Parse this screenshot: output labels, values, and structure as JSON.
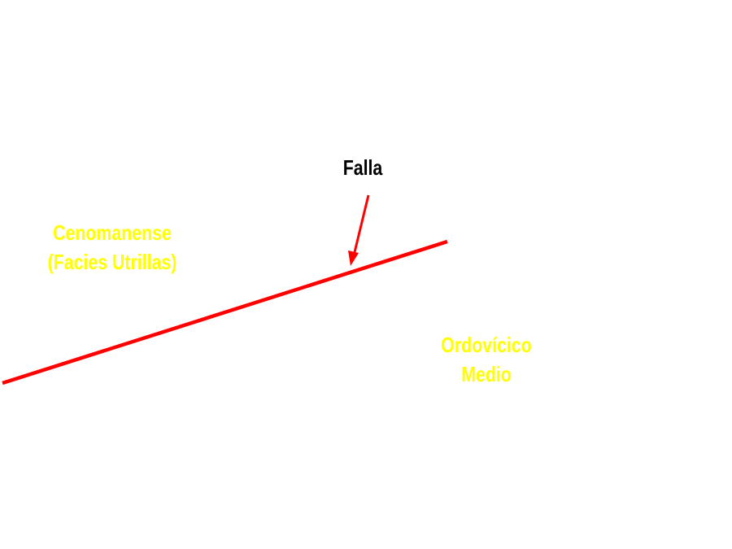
{
  "labels": {
    "fault": "Falla",
    "upper_unit": {
      "line1": "Cenomanense",
      "line2": "(Facies Utrillas)"
    },
    "lower_unit": {
      "line1": "Ordovícico",
      "line2": "Medio"
    }
  },
  "colors": {
    "fault_line": "#ff0000",
    "arrow": "#ff0000",
    "fault_label": "#000000",
    "unit_labels": "#ffff00",
    "background": "#ffffff"
  }
}
